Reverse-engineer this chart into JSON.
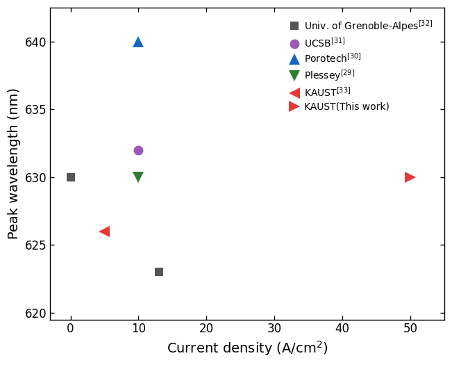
{
  "series": [
    {
      "label": "Univ. of Grenoble-Alpes$^{[32]}$",
      "x": [
        0,
        13
      ],
      "y": [
        630,
        623
      ],
      "color": "#555555",
      "marker": "s",
      "markersize": 8,
      "zorder": 3
    },
    {
      "label": "UCSB$^{[31]}$",
      "x": [
        10
      ],
      "y": [
        632
      ],
      "color": "#9b59b6",
      "marker": "o",
      "markersize": 10,
      "zorder": 3
    },
    {
      "label": "Porotech$^{[30]}$",
      "x": [
        10
      ],
      "y": [
        640
      ],
      "color": "#1565c0",
      "marker": "^",
      "markersize": 11,
      "zorder": 3
    },
    {
      "label": "Plessey$^{[29]}$",
      "x": [
        10
      ],
      "y": [
        630
      ],
      "color": "#2e7d32",
      "marker": "v",
      "markersize": 11,
      "zorder": 3
    },
    {
      "label": "KAUST$^{[33]}$",
      "x": [
        5
      ],
      "y": [
        626
      ],
      "color": "#e53935",
      "marker": "<",
      "markersize": 11,
      "zorder": 3
    },
    {
      "label": "KAUST(This work)",
      "x": [
        50
      ],
      "y": [
        630
      ],
      "color": "#e53935",
      "marker": ">",
      "markersize": 11,
      "zorder": 3
    }
  ],
  "xlabel": "Current density (A/cm$^{2}$)",
  "ylabel": "Peak wavelength (nm)",
  "xlim": [
    -3,
    55
  ],
  "ylim": [
    619.5,
    642.5
  ],
  "xticks": [
    0,
    10,
    20,
    30,
    40,
    50
  ],
  "yticks": [
    620,
    625,
    630,
    635,
    640
  ],
  "figsize": [
    6.51,
    5.25
  ],
  "dpi": 100,
  "spine_linewidth": 1.0,
  "tick_labelsize": 12,
  "axis_labelsize": 14,
  "legend_fontsize": 10
}
